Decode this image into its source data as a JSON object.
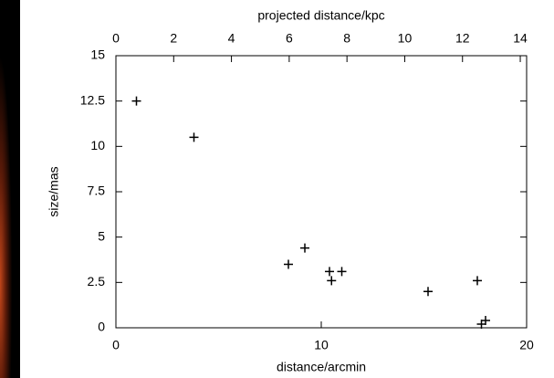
{
  "chart_data": {
    "type": "scatter",
    "xlabel": "distance/arcmin",
    "ylabel": "size/mas",
    "x2label": "projected distance/kpc",
    "xlim": [
      0,
      20
    ],
    "xticks": [
      0,
      10,
      20
    ],
    "x2lim": [
      0,
      14.22
    ],
    "x2ticks": [
      0,
      2,
      4,
      6,
      8,
      10,
      12,
      14
    ],
    "ylim": [
      0,
      15
    ],
    "yticks": [
      0,
      2.5,
      5,
      7.5,
      10,
      12.5,
      15
    ],
    "grid": false,
    "series": [
      {
        "color": "#000000",
        "x": [
          1.0,
          3.8,
          8.4,
          9.2,
          10.4,
          10.5,
          11.0,
          15.2,
          17.6,
          18.0,
          17.8
        ],
        "values": [
          12.5,
          10.5,
          3.5,
          4.4,
          3.1,
          2.6,
          3.1,
          2.0,
          2.6,
          0.4,
          0.2
        ]
      }
    ]
  }
}
